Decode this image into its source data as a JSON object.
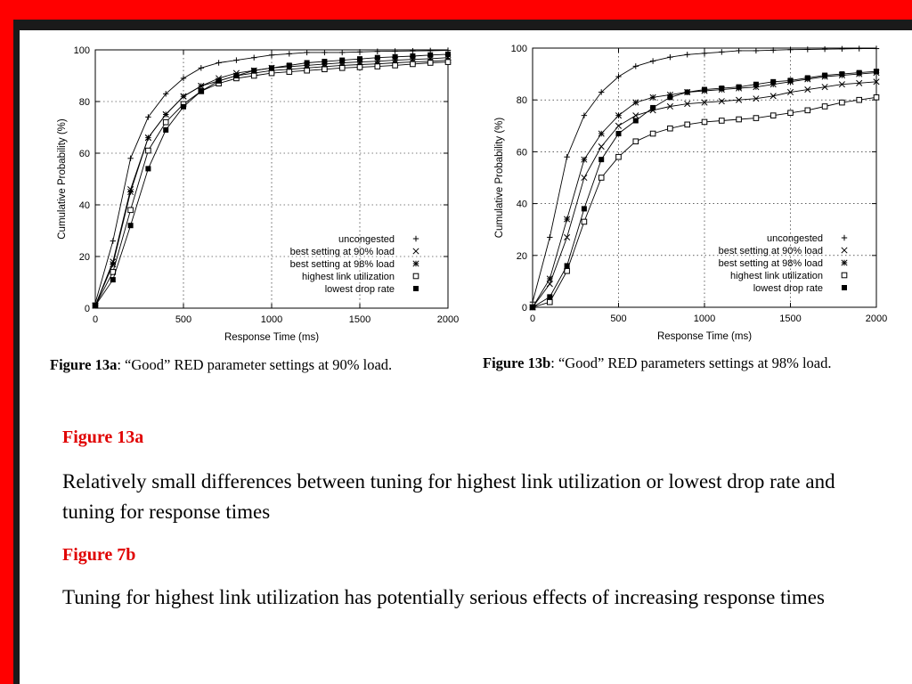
{
  "chart_data": [
    {
      "type": "line",
      "xlabel": "Response Time (ms)",
      "ylabel": "Cumulative Probability (%)",
      "xlim": [
        0,
        2000
      ],
      "ylim": [
        0,
        100
      ],
      "xticks": [
        "0",
        "500",
        "1000",
        "1500",
        "2000"
      ],
      "yticks": [
        "0",
        "20",
        "40",
        "60",
        "80",
        "100"
      ],
      "grid": true,
      "legend_position": "bottom-right",
      "series": [
        {
          "name": "uncongested",
          "marker": "plus",
          "x": [
            0,
            100,
            200,
            300,
            400,
            500,
            600,
            700,
            800,
            900,
            1000,
            1100,
            1200,
            1300,
            1400,
            1500,
            1600,
            1700,
            1800,
            1900,
            2000
          ],
          "y": [
            2,
            26,
            58,
            74,
            83,
            89,
            93,
            95,
            96,
            97,
            98,
            98.5,
            99,
            99,
            99,
            99.2,
            99.4,
            99.5,
            99.6,
            99.7,
            99.8
          ]
        },
        {
          "name": "best setting at 90% load",
          "marker": "x",
          "x": [
            0,
            100,
            200,
            300,
            400,
            500,
            600,
            700,
            800,
            900,
            1000,
            1100,
            1200,
            1300,
            1400,
            1500,
            1600,
            1700,
            1800,
            1900,
            2000
          ],
          "y": [
            1,
            18,
            46,
            66,
            75,
            82,
            86,
            89,
            91,
            92,
            93,
            93.5,
            94,
            94.5,
            95,
            95.3,
            95.6,
            96,
            96.3,
            96.6,
            97
          ]
        },
        {
          "name": "best setting at 98% load",
          "marker": "asterisk",
          "x": [
            0,
            100,
            200,
            300,
            400,
            500,
            600,
            700,
            800,
            900,
            1000,
            1100,
            1200,
            1300,
            1400,
            1500,
            1600,
            1700,
            1800,
            1900,
            2000
          ],
          "y": [
            1,
            17,
            45,
            66,
            75,
            82,
            86,
            88,
            90,
            91,
            92,
            92.5,
            93,
            93.5,
            94,
            94.3,
            94.6,
            95,
            95.3,
            95.6,
            96
          ]
        },
        {
          "name": "highest link utilization",
          "marker": "square-open",
          "x": [
            0,
            100,
            200,
            300,
            400,
            500,
            600,
            700,
            800,
            900,
            1000,
            1100,
            1200,
            1300,
            1400,
            1500,
            1600,
            1700,
            1800,
            1900,
            2000
          ],
          "y": [
            1,
            14,
            38,
            61,
            72,
            79,
            84,
            87,
            89,
            90,
            91,
            91.5,
            92,
            92.5,
            93,
            93.3,
            93.6,
            94,
            94.5,
            95,
            95.3
          ]
        },
        {
          "name": "lowest drop rate",
          "marker": "square-filled",
          "x": [
            0,
            100,
            200,
            300,
            400,
            500,
            600,
            700,
            800,
            900,
            1000,
            1100,
            1200,
            1300,
            1400,
            1500,
            1600,
            1700,
            1800,
            1900,
            2000
          ],
          "y": [
            1,
            11,
            32,
            54,
            69,
            78,
            84,
            88,
            90,
            92,
            93,
            94,
            95,
            95.5,
            96,
            96.5,
            97,
            97.3,
            97.6,
            98,
            98.3
          ]
        }
      ]
    },
    {
      "type": "line",
      "xlabel": "Response Time (ms)",
      "ylabel": "Cumulative Probability (%)",
      "xlim": [
        0,
        2000
      ],
      "ylim": [
        0,
        100
      ],
      "xticks": [
        "0",
        "500",
        "1000",
        "1500",
        "2000"
      ],
      "yticks": [
        "0",
        "20",
        "40",
        "60",
        "80",
        "100"
      ],
      "grid": true,
      "legend_position": "bottom-right",
      "series": [
        {
          "name": "uncongested",
          "marker": "plus",
          "x": [
            0,
            100,
            200,
            300,
            400,
            500,
            600,
            700,
            800,
            900,
            1000,
            1100,
            1200,
            1300,
            1400,
            1500,
            1600,
            1700,
            1800,
            1900,
            2000
          ],
          "y": [
            2,
            27,
            58,
            74,
            83,
            89,
            93,
            95,
            96.5,
            97.5,
            98,
            98.5,
            99,
            99,
            99.2,
            99.4,
            99.5,
            99.6,
            99.7,
            99.8,
            99.8
          ]
        },
        {
          "name": "best setting at 90% load",
          "marker": "x",
          "x": [
            0,
            100,
            200,
            300,
            400,
            500,
            600,
            700,
            800,
            900,
            1000,
            1100,
            1200,
            1300,
            1400,
            1500,
            1600,
            1700,
            1800,
            1900,
            2000
          ],
          "y": [
            0,
            9,
            27,
            50,
            62,
            70,
            74,
            76,
            77.5,
            78.5,
            79,
            79.5,
            80,
            80.5,
            81.5,
            83,
            84,
            85,
            86,
            86.5,
            87
          ]
        },
        {
          "name": "best setting at 98% load",
          "marker": "asterisk",
          "x": [
            0,
            100,
            200,
            300,
            400,
            500,
            600,
            700,
            800,
            900,
            1000,
            1100,
            1200,
            1300,
            1400,
            1500,
            1600,
            1700,
            1800,
            1900,
            2000
          ],
          "y": [
            0,
            11,
            34,
            57,
            67,
            74,
            79,
            81,
            82,
            83,
            83.5,
            84,
            84.5,
            85,
            86,
            87,
            88,
            89,
            89.5,
            90,
            90.5
          ]
        },
        {
          "name": "highest link utilization",
          "marker": "square-open",
          "x": [
            0,
            100,
            200,
            300,
            400,
            500,
            600,
            700,
            800,
            900,
            1000,
            1100,
            1200,
            1300,
            1400,
            1500,
            1600,
            1700,
            1800,
            1900,
            2000
          ],
          "y": [
            0,
            2,
            14,
            33,
            50,
            58,
            64,
            67,
            69,
            70.5,
            71.5,
            72,
            72.5,
            73,
            74,
            75,
            76,
            77.5,
            79,
            80,
            81
          ]
        },
        {
          "name": "lowest drop rate",
          "marker": "square-filled",
          "x": [
            0,
            100,
            200,
            300,
            400,
            500,
            600,
            700,
            800,
            900,
            1000,
            1100,
            1200,
            1300,
            1400,
            1500,
            1600,
            1700,
            1800,
            1900,
            2000
          ],
          "y": [
            0,
            4,
            16,
            38,
            57,
            67,
            72,
            77,
            81,
            83,
            84,
            84.5,
            85,
            86,
            87,
            87.5,
            88.5,
            89.5,
            90,
            90.5,
            91
          ]
        }
      ]
    }
  ],
  "figures": {
    "a": {
      "caption_label": "Figure 13a",
      "caption_sep": ":",
      "caption_text": " “Good” RED parameter settings at 90% load."
    },
    "b": {
      "caption_label": "Figure 13b",
      "caption_sep": ":",
      "caption_text": " “Good” RED parameters settings at 98% load."
    }
  },
  "notes": [
    {
      "heading": "Figure 13a",
      "text": "Relatively small differences between tuning for highest link utilization or lowest drop rate and tuning for response times"
    },
    {
      "heading": "Figure 7b",
      "text": "Tuning for highest link utilization has potentially serious effects of increasing response times"
    }
  ],
  "colors": {
    "frame": "#ff0000",
    "heading": "#e00000",
    "text": "#000000",
    "background": "#ffffff"
  }
}
